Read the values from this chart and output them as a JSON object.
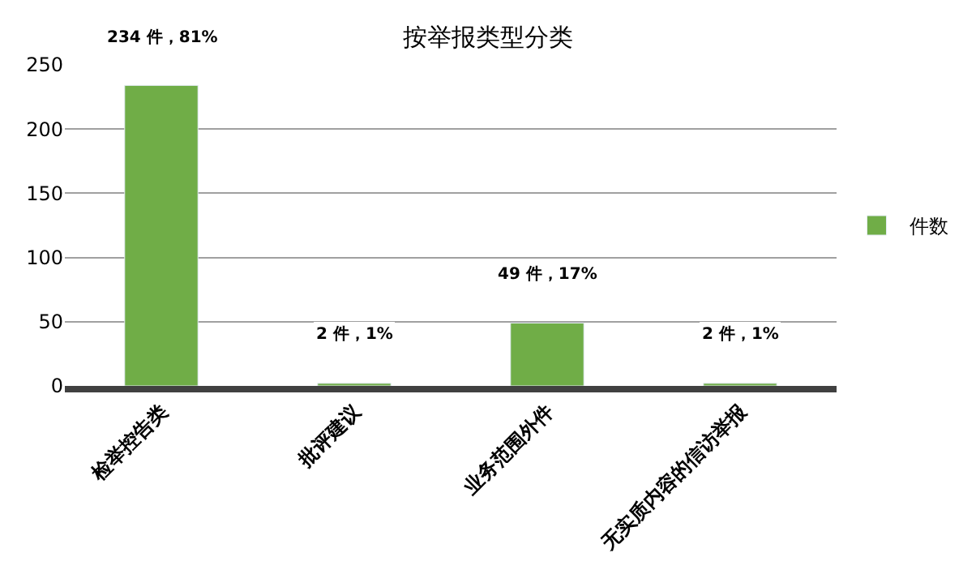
{
  "chart_data": {
    "type": "bar",
    "title": "按举报类型分类",
    "categories": [
      "检举控告类",
      "批评建议",
      "业务范围外件",
      "无实质内容的信访举报"
    ],
    "series": [
      {
        "name": "件数",
        "color": "#70ad47",
        "values": [
          234,
          2,
          49,
          2
        ],
        "value_labels": [
          "234 件，81%",
          "2 件，1%",
          "49 件，17%",
          "2 件，1%"
        ]
      }
    ],
    "ylim": [
      0,
      250
    ],
    "yticks": [
      0,
      50,
      100,
      150,
      200,
      250
    ],
    "grid": "y",
    "legend": "right"
  }
}
